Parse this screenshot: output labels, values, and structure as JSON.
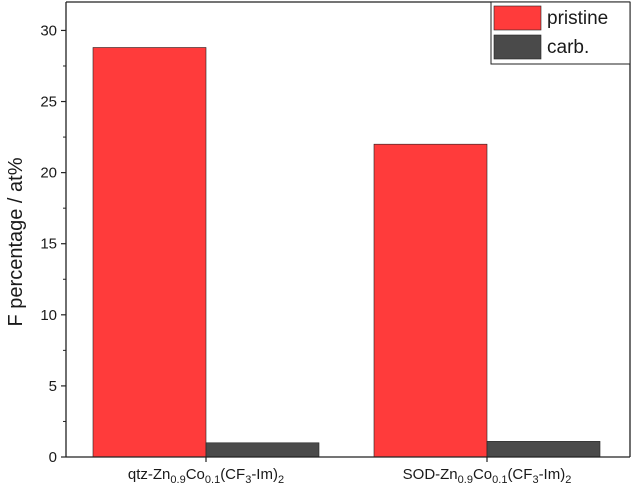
{
  "chart_data": {
    "type": "bar",
    "ylabel": "F percentage / at%",
    "xlabel": "",
    "ylim": [
      0,
      32
    ],
    "yticks": [
      0,
      5,
      10,
      15,
      20,
      25,
      30
    ],
    "categories": [
      {
        "parts": [
          [
            "qtz-Zn",
            ""
          ],
          [
            "0.9",
            "sub"
          ],
          [
            "Co",
            ""
          ],
          [
            "0.1",
            "sub"
          ],
          [
            "(CF",
            ""
          ],
          [
            "3",
            "sub"
          ],
          [
            "-Im)",
            ""
          ],
          [
            "2",
            "sub"
          ]
        ]
      },
      {
        "parts": [
          [
            "SOD-Zn",
            ""
          ],
          [
            "0.9",
            "sub"
          ],
          [
            "Co",
            ""
          ],
          [
            "0.1",
            "sub"
          ],
          [
            "(CF",
            ""
          ],
          [
            "3",
            "sub"
          ],
          [
            "-Im)",
            ""
          ],
          [
            "2",
            "sub"
          ]
        ]
      }
    ],
    "series": [
      {
        "name": "pristine",
        "color": "#ff3b3b",
        "values": [
          28.8,
          22.0
        ]
      },
      {
        "name": "carb.",
        "color": "#4a4a4a",
        "values": [
          1.0,
          1.1
        ]
      }
    ],
    "legend_position": "top-right",
    "grid": false
  }
}
